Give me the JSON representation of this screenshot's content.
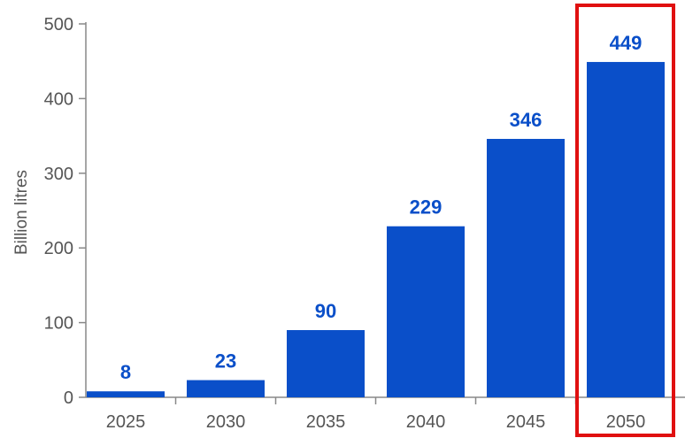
{
  "chart_data": {
    "type": "bar",
    "categories": [
      "2025",
      "2030",
      "2035",
      "2040",
      "2045",
      "2050"
    ],
    "values": [
      8,
      23,
      90,
      229,
      346,
      449
    ],
    "data_labels": [
      "8",
      "23",
      "90",
      "229",
      "346",
      "449"
    ],
    "title": "",
    "xlabel": "",
    "ylabel": "Billion litres",
    "ylim": [
      0,
      500
    ],
    "yticks": [
      0,
      100,
      200,
      300,
      400,
      500
    ],
    "ytick_labels": [
      "0",
      "100",
      "200",
      "300",
      "400",
      "500"
    ],
    "grid": false,
    "legend": "none",
    "highlighted_category": "2050",
    "colors": {
      "bar": "#0a4fc9",
      "label": "#0a4fc9",
      "highlight_frame": "#e01010",
      "axis": "#888888",
      "tick_text": "#555555"
    }
  }
}
